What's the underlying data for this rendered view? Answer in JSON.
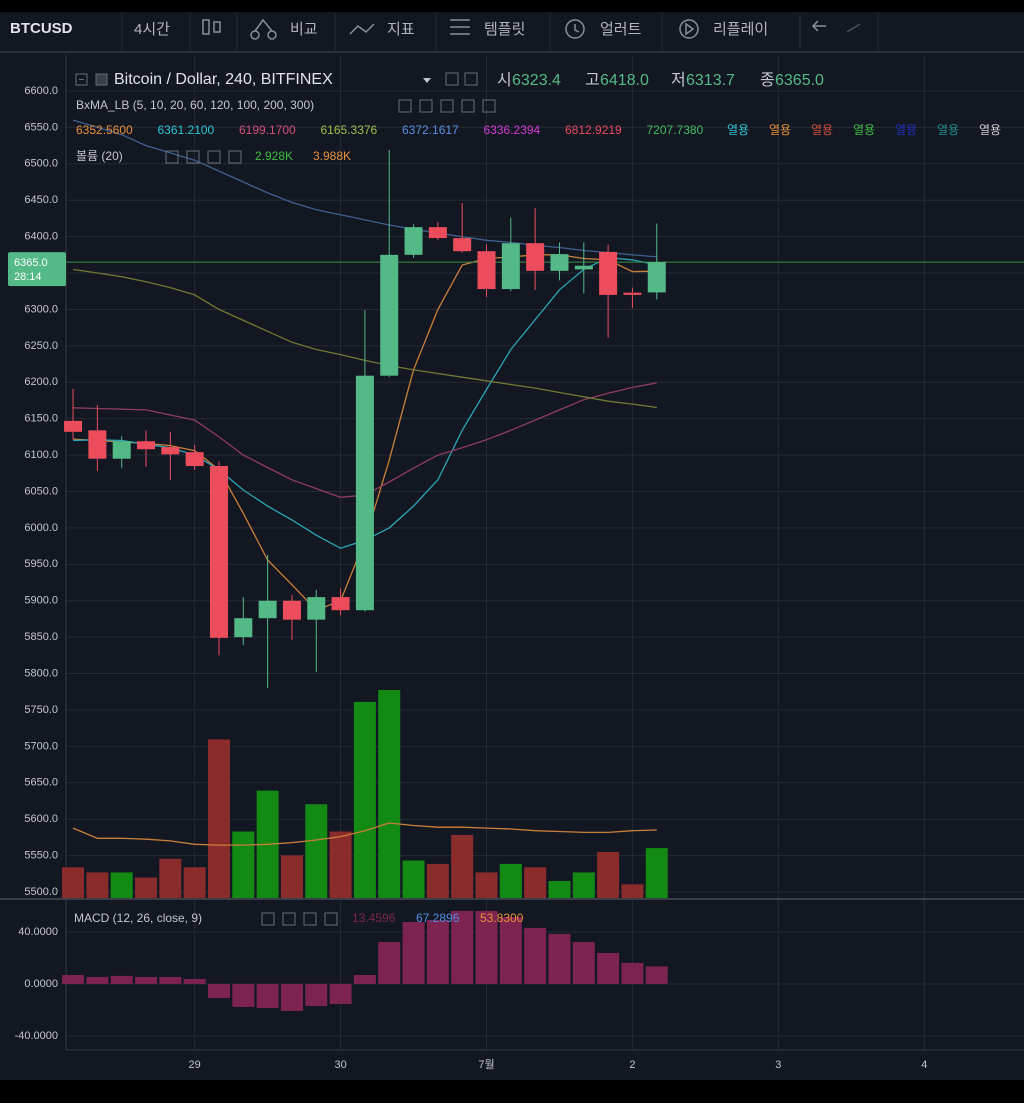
{
  "toolbar": {
    "symbol": "BTCUSD",
    "interval": "4시간",
    "items": [
      "비교",
      "지표",
      "템플릿",
      "얼러트",
      "리플레이"
    ]
  },
  "chart_data": {
    "type": "candlestick",
    "title": "Bitcoin / Dollar, 240, BITFINEX",
    "ohlc_legend": [
      {
        "key": "시",
        "text": "6323.4"
      },
      {
        "key": "고",
        "text": "6418.0"
      },
      {
        "key": "저",
        "text": "6313.7"
      },
      {
        "key": "종",
        "text": "6365.0"
      }
    ],
    "up_color": "#53b987",
    "down_color": "#eb4d5c",
    "candles": {
      "open": [
        6147,
        6134,
        6095,
        6119,
        6111,
        6104,
        6085,
        5850,
        5876,
        5900,
        5874,
        5905,
        5887,
        6209,
        6375,
        6413,
        6398,
        6380,
        6328,
        6391,
        6353,
        6355,
        6379,
        6323,
        6323.4
      ],
      "high": [
        6191,
        6169,
        6126,
        6134,
        6132,
        6114,
        6091,
        5905,
        5963,
        5908,
        5915,
        5917,
        6299,
        6519,
        6417,
        6420,
        6446,
        6389,
        6426,
        6439,
        6392,
        6392,
        6389,
        6330,
        6418
      ],
      "low": [
        6121,
        6078,
        6082,
        6084,
        6066,
        6080,
        5825,
        5839,
        5780,
        5846,
        5802,
        5880,
        5885,
        6207,
        6371,
        6395,
        6378,
        6317,
        6325,
        6327,
        6340,
        6322,
        6261,
        6302,
        6313.7
      ],
      "close": [
        6132,
        6095,
        6119,
        6108,
        6101,
        6085,
        5849,
        5876,
        5900,
        5874,
        5905,
        5887,
        6209,
        6375,
        6413,
        6398,
        6380,
        6328,
        6391,
        6353,
        6376,
        6360,
        6320,
        6320,
        6365
      ]
    },
    "xlim": [
      -0.29,
      39.1
    ],
    "xticks": [
      {
        "value": 5,
        "label": "29"
      },
      {
        "value": 11,
        "label": "30"
      },
      {
        "value": 17,
        "label": "7월"
      },
      {
        "value": 23,
        "label": "2"
      },
      {
        "value": 29,
        "label": "3"
      },
      {
        "value": 35,
        "label": "4"
      }
    ],
    "ylim": [
      5491.8,
      6649.4
    ],
    "yticks": [
      {
        "value": 6600,
        "label": "6600.0"
      },
      {
        "value": 6550,
        "label": "6550.0"
      },
      {
        "value": 6500,
        "label": "6500.0"
      },
      {
        "value": 6450,
        "label": "6450.0"
      },
      {
        "value": 6400,
        "label": "6400.0"
      },
      {
        "value": 6350,
        "label": "6350.0"
      },
      {
        "value": 6300,
        "label": "6300.0"
      },
      {
        "value": 6250,
        "label": "6250.0"
      },
      {
        "value": 6200,
        "label": "6200.0"
      },
      {
        "value": 6150,
        "label": "6150.0"
      },
      {
        "value": 6100,
        "label": "6100.0"
      },
      {
        "value": 6050,
        "label": "6050.0"
      },
      {
        "value": 6000,
        "label": "6000.0"
      },
      {
        "value": 5950,
        "label": "5950.0"
      },
      {
        "value": 5900,
        "label": "5900.0"
      },
      {
        "value": 5850,
        "label": "5850.0"
      },
      {
        "value": 5800,
        "label": "5800.0"
      },
      {
        "value": 5750,
        "label": "5750.0"
      },
      {
        "value": 5700,
        "label": "5700.0"
      },
      {
        "value": 5650,
        "label": "5650.0"
      },
      {
        "value": 5600,
        "label": "5600.0"
      },
      {
        "value": 5550,
        "label": "5550.0"
      },
      {
        "value": 5500,
        "label": "5500.0"
      }
    ],
    "grid": true,
    "price_label": "6365.0",
    "countdown": "28:14",
    "moving_averages": {
      "title": "BxMA_LB (5, 10, 20, 60, 120, 100, 200, 300)",
      "legend": [
        {
          "text": "6352.5600",
          "color": "#e8913a"
        },
        {
          "text": "6361.2100",
          "color": "#2cc6d6"
        },
        {
          "text": "6199.1700",
          "color": "#d0507a"
        },
        {
          "text": "6165.3376",
          "color": "#9cc24a"
        },
        {
          "text": "6372.1617",
          "color": "#5a8fe0"
        },
        {
          "text": "6336.2394",
          "color": "#d43cd4"
        },
        {
          "text": "6812.9219",
          "color": "#e84a5f"
        },
        {
          "text": "7207.7380",
          "color": "#3fbf5f"
        }
      ],
      "flags": [
        {
          "text": "열용",
          "color": "#2cc6d6"
        },
        {
          "text": "열용",
          "color": "#e8913a"
        },
        {
          "text": "열용",
          "color": "#d0503a"
        },
        {
          "text": "열용",
          "color": "#3fbf3f"
        },
        {
          "text": "열용",
          "color": "#2030c0"
        },
        {
          "text": "열용",
          "color": "#1f8f8f"
        },
        {
          "text": "열용",
          "color": "#d0d0d0"
        }
      ],
      "series": [
        {
          "color": "#c9803a",
          "values": [
            6122,
            6120,
            6118,
            6116,
            6113,
            6106,
            6080,
            6020,
            5956,
            5922,
            5887,
            5900,
            5983,
            6093,
            6217,
            6300,
            6361,
            6370,
            6372,
            6375,
            6375,
            6370,
            6368,
            6352,
            6352.56
          ]
        },
        {
          "color": "#2aa5b5",
          "values": [
            6120,
            6121,
            6120,
            6115,
            6110,
            6100,
            6080,
            6052,
            6030,
            6011,
            5990,
            5972,
            5983,
            6000,
            6030,
            6066,
            6134,
            6190,
            6245,
            6286,
            6327,
            6355,
            6371,
            6368,
            6361.21
          ]
        },
        {
          "color": "#8e3d5e",
          "values": [
            6165,
            6164,
            6163,
            6162,
            6155,
            6148,
            6125,
            6100,
            6083,
            6066,
            6054,
            6042,
            6045,
            6063,
            6082,
            6100,
            6110,
            6121,
            6134,
            6148,
            6162,
            6176,
            6185,
            6193,
            6199.17
          ]
        },
        {
          "color": "#6f7a32",
          "values": [
            6355,
            6350,
            6345,
            6338,
            6330,
            6320,
            6300,
            6285,
            6270,
            6255,
            6245,
            6238,
            6230,
            6223,
            6217,
            6212,
            6207,
            6202,
            6197,
            6192,
            6186,
            6180,
            6174,
            6170,
            6165.34
          ]
        },
        {
          "color": "#3f5f8f",
          "values": [
            6560,
            6550,
            6540,
            6525,
            6515,
            6505,
            6490,
            6475,
            6460,
            6447,
            6437,
            6430,
            6423,
            6416,
            6410,
            6405,
            6400,
            6395,
            6392,
            6388,
            6385,
            6381,
            6378,
            6375,
            6372.16
          ]
        }
      ]
    },
    "volume": {
      "title": "볼륨 (20)",
      "labels": [
        {
          "text": "2.928K",
          "color": "#3fbf3f"
        },
        {
          "text": "3.988K",
          "color": "#e8913a"
        }
      ],
      "up_color": "#138a13",
      "down_color": "#8b2c2c",
      "values": [
        1.8,
        1.5,
        1.5,
        1.2,
        2.3,
        1.8,
        9.3,
        3.9,
        6.3,
        2.5,
        5.5,
        3.9,
        11.5,
        12.2,
        2.2,
        2.0,
        3.7,
        1.5,
        2.0,
        1.8,
        1.0,
        1.5,
        2.7,
        0.8,
        2.928
      ],
      "ma": {
        "color": "#c9803a",
        "values": [
          4.1,
          3.5,
          3.5,
          3.45,
          3.35,
          3.15,
          3.1,
          3.1,
          3.15,
          3.25,
          3.4,
          3.6,
          3.95,
          4.4,
          4.25,
          4.15,
          4.15,
          4.1,
          4.05,
          3.95,
          3.9,
          3.85,
          3.85,
          3.95,
          3.988
        ]
      }
    },
    "macd": {
      "title": "MACD (12, 26, close, 9)",
      "labels": [
        {
          "text": "13.4596",
          "color": "#7a2a45"
        },
        {
          "text": "67.2896",
          "color": "#4a8fe0"
        },
        {
          "text": "53.8300",
          "color": "#e8913a"
        }
      ],
      "color": "#7d2350",
      "histogram": [
        6.9,
        5.4,
        6.2,
        5.4,
        5.4,
        3.8,
        -10.8,
        -17.7,
        -18.5,
        -20.8,
        -16.9,
        -15.4,
        6.9,
        32.3,
        47.7,
        49.2,
        56.2,
        56.2,
        51.5,
        43.1,
        38.5,
        32.3,
        23.8,
        16.2,
        13.4596
      ],
      "ylim": [
        -50.8,
        64.6
      ],
      "yticks": [
        {
          "value": 40,
          "label": "40.0000"
        },
        {
          "value": 0,
          "label": "0.0000"
        },
        {
          "value": -40,
          "label": "-40.0000"
        }
      ]
    }
  }
}
